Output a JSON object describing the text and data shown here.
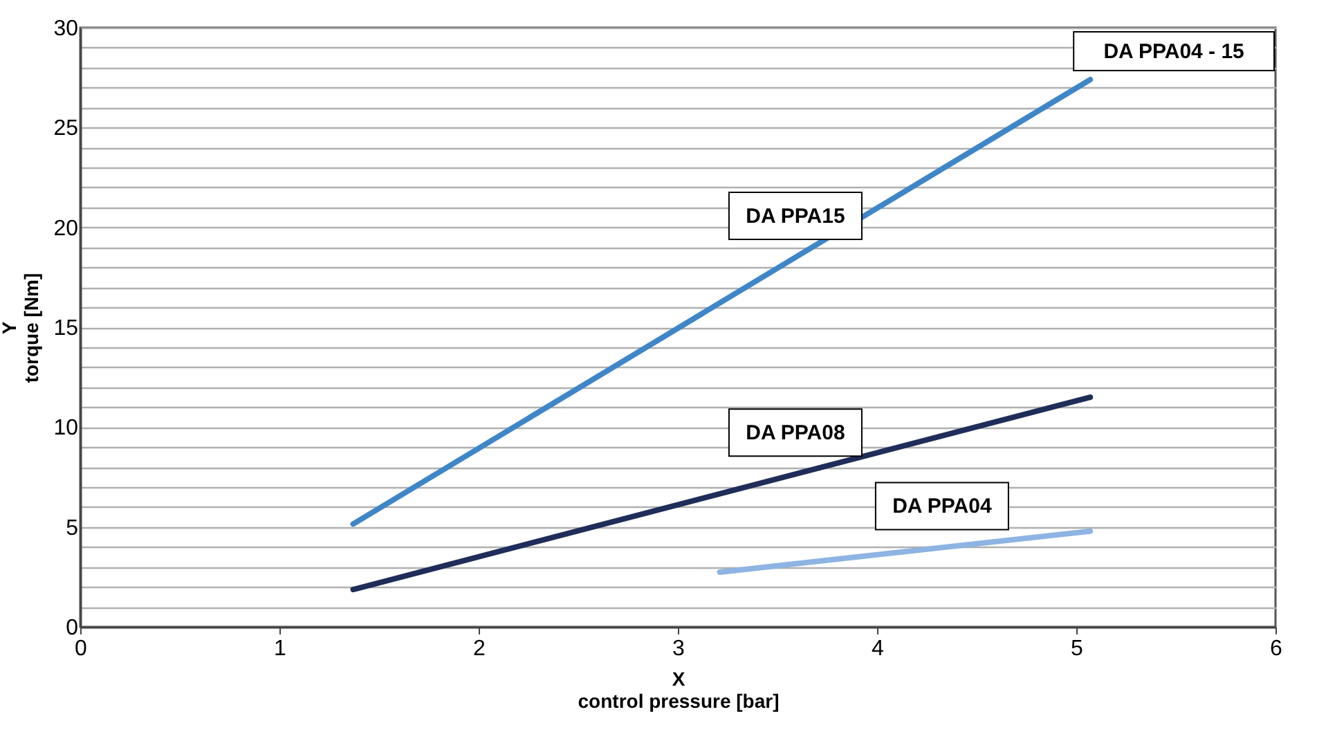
{
  "chart_data": {
    "type": "line",
    "xlabel": "X\ncontrol pressure [bar]",
    "ylabel": "Y\ntorque [Nm]",
    "xlim": [
      0,
      6
    ],
    "xticks": [
      0,
      1,
      2,
      3,
      4,
      5,
      6
    ],
    "ylim": [
      0,
      30
    ],
    "yticks": [
      0,
      5,
      10,
      15,
      20,
      25,
      30
    ],
    "grid": "y",
    "legend": false,
    "line_style": "solid",
    "annotations": [
      "DA PPA04 - 15"
    ],
    "series": [
      {
        "name": "DA PPA15",
        "color": "#3f86c8",
        "x": [
          1.37,
          5.07
        ],
        "values": [
          5.15,
          27.4
        ]
      },
      {
        "name": "DA PPA08",
        "color": "#1f2d5a",
        "x": [
          1.37,
          5.07
        ],
        "values": [
          1.87,
          11.5
        ]
      },
      {
        "name": "DA PPA04",
        "color": "#8db4e2",
        "x": [
          3.21,
          5.07
        ],
        "values": [
          2.74,
          4.79
        ]
      }
    ]
  }
}
